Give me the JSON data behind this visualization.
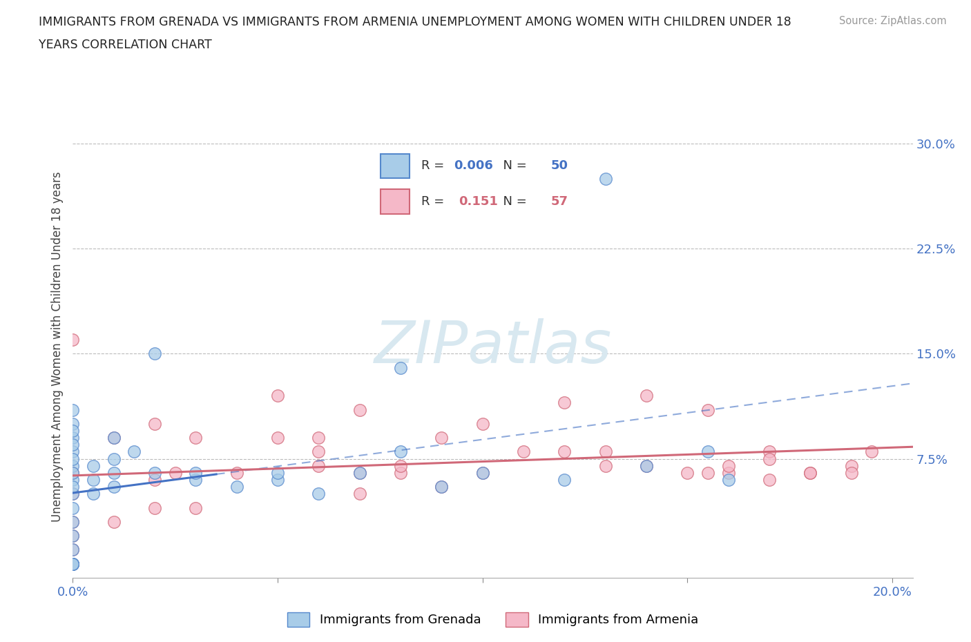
{
  "title_line1": "IMMIGRANTS FROM GRENADA VS IMMIGRANTS FROM ARMENIA UNEMPLOYMENT AMONG WOMEN WITH CHILDREN UNDER 18",
  "title_line2": "YEARS CORRELATION CHART",
  "ylabel": "Unemployment Among Women with Children Under 18 years",
  "source_text": "Source: ZipAtlas.com",
  "xlim": [
    0.0,
    0.205
  ],
  "ylim": [
    -0.01,
    0.32
  ],
  "color_grenada": "#a8cce8",
  "color_armenia": "#f5b8c8",
  "edge_grenada": "#5588cc",
  "edge_armenia": "#d06878",
  "line_color_grenada": "#4472c4",
  "line_color_armenia": "#d06878",
  "grenada_x": [
    0.0,
    0.0,
    0.0,
    0.0,
    0.0,
    0.0,
    0.0,
    0.0,
    0.0,
    0.0,
    0.0,
    0.0,
    0.0,
    0.0,
    0.0,
    0.0,
    0.0,
    0.0,
    0.005,
    0.005,
    0.005,
    0.01,
    0.01,
    0.01,
    0.01,
    0.015,
    0.02,
    0.02,
    0.03,
    0.03,
    0.04,
    0.05,
    0.05,
    0.06,
    0.07,
    0.08,
    0.08,
    0.09,
    0.1,
    0.12,
    0.13,
    0.14,
    0.155,
    0.16,
    0.0,
    0.0,
    0.0,
    0.0,
    0.0,
    0.0
  ],
  "grenada_y": [
    0.0,
    0.0,
    0.01,
    0.02,
    0.03,
    0.04,
    0.05,
    0.06,
    0.07,
    0.08,
    0.09,
    0.1,
    0.11,
    0.055,
    0.065,
    0.075,
    0.085,
    0.095,
    0.05,
    0.06,
    0.07,
    0.055,
    0.065,
    0.075,
    0.09,
    0.08,
    0.065,
    0.15,
    0.06,
    0.065,
    0.055,
    0.06,
    0.065,
    0.05,
    0.065,
    0.08,
    0.14,
    0.055,
    0.065,
    0.06,
    0.275,
    0.07,
    0.08,
    0.06,
    0.0,
    0.0,
    0.0,
    0.0,
    0.0,
    0.0
  ],
  "armenia_x": [
    0.0,
    0.0,
    0.0,
    0.0,
    0.0,
    0.0,
    0.0,
    0.01,
    0.01,
    0.02,
    0.02,
    0.02,
    0.025,
    0.03,
    0.03,
    0.04,
    0.05,
    0.05,
    0.06,
    0.06,
    0.06,
    0.07,
    0.07,
    0.07,
    0.08,
    0.08,
    0.09,
    0.09,
    0.1,
    0.1,
    0.11,
    0.12,
    0.12,
    0.13,
    0.13,
    0.14,
    0.14,
    0.15,
    0.155,
    0.16,
    0.16,
    0.17,
    0.17,
    0.18,
    0.19,
    0.195,
    0.155,
    0.17,
    0.18,
    0.19
  ],
  "armenia_y": [
    0.0,
    0.01,
    0.02,
    0.03,
    0.05,
    0.065,
    0.16,
    0.03,
    0.09,
    0.04,
    0.06,
    0.1,
    0.065,
    0.04,
    0.09,
    0.065,
    0.09,
    0.12,
    0.07,
    0.08,
    0.09,
    0.05,
    0.065,
    0.11,
    0.065,
    0.07,
    0.055,
    0.09,
    0.065,
    0.1,
    0.08,
    0.08,
    0.115,
    0.07,
    0.08,
    0.07,
    0.12,
    0.065,
    0.11,
    0.065,
    0.07,
    0.06,
    0.08,
    0.065,
    0.07,
    0.08,
    0.065,
    0.075,
    0.065,
    0.065
  ]
}
